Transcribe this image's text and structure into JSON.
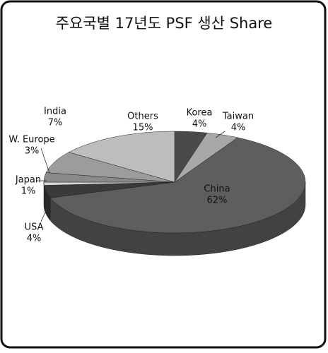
{
  "chart_data": {
    "type": "pie3d",
    "title": "주요국별 17년도 PSF 생산 Share",
    "categories": [
      "Korea",
      "Taiwan",
      "China",
      "USA",
      "Japan",
      "W. Europe",
      "India",
      "Others"
    ],
    "values": [
      4,
      4,
      62,
      4,
      1,
      3,
      7,
      15
    ],
    "value_labels": [
      "4%",
      "4%",
      "62%",
      "4%",
      "1%",
      "3%",
      "7%",
      "15%"
    ],
    "colors": [
      "#4a4a4a",
      "#a8a8a8",
      "#5e5e5e",
      "#3a3a3a",
      "#d8d8d8",
      "#8a8a8a",
      "#9c9c9c",
      "#bdbdbd"
    ]
  }
}
